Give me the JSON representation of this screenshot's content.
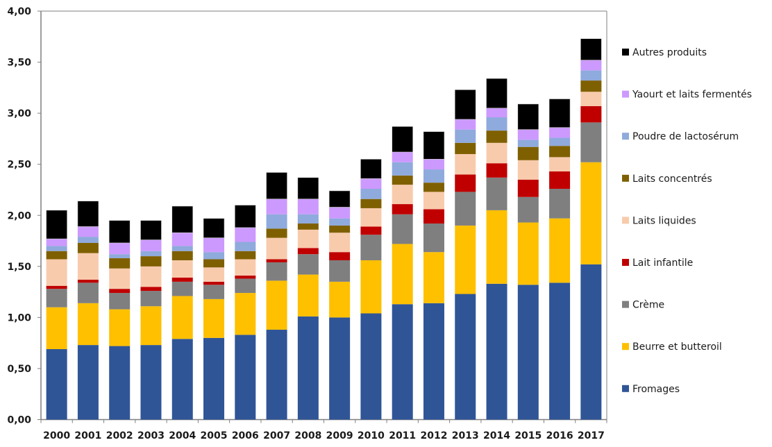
{
  "chart_data": {
    "type": "bar",
    "stacked": true,
    "title": "",
    "xlabel": "",
    "ylabel": "",
    "ylim": [
      0,
      4
    ],
    "yticks": [
      "0,00",
      "0,50",
      "1,00",
      "1,50",
      "2,00",
      "2,50",
      "3,00",
      "3,50",
      "4,00"
    ],
    "ytick_values": [
      0,
      0.5,
      1,
      1.5,
      2,
      2.5,
      3,
      3.5,
      4
    ],
    "grid": false,
    "legend_position": "right",
    "categories": [
      "2000",
      "2001",
      "2002",
      "2003",
      "2004",
      "2005",
      "2006",
      "2007",
      "2008",
      "2009",
      "2010",
      "2011",
      "2012",
      "2013",
      "2014",
      "2015",
      "2016",
      "2017"
    ],
    "series": [
      {
        "name": "Fromages",
        "color": "#2F5597",
        "values": [
          0.69,
          0.73,
          0.72,
          0.73,
          0.79,
          0.8,
          0.83,
          0.88,
          1.01,
          1.0,
          1.04,
          1.13,
          1.14,
          1.23,
          1.33,
          1.32,
          1.34,
          1.52
        ]
      },
      {
        "name": "Beurre et butteroil",
        "color": "#FFC000",
        "values": [
          0.41,
          0.41,
          0.36,
          0.38,
          0.42,
          0.38,
          0.41,
          0.48,
          0.41,
          0.35,
          0.52,
          0.59,
          0.5,
          0.67,
          0.72,
          0.61,
          0.63,
          1.0
        ]
      },
      {
        "name": "Crème",
        "color": "#7F7F7F",
        "values": [
          0.18,
          0.2,
          0.16,
          0.15,
          0.14,
          0.14,
          0.14,
          0.18,
          0.2,
          0.21,
          0.25,
          0.29,
          0.28,
          0.33,
          0.32,
          0.25,
          0.29,
          0.39
        ]
      },
      {
        "name": "Lait infantile",
        "color": "#C00000",
        "values": [
          0.03,
          0.03,
          0.04,
          0.04,
          0.04,
          0.03,
          0.03,
          0.03,
          0.06,
          0.08,
          0.08,
          0.1,
          0.14,
          0.17,
          0.14,
          0.17,
          0.17,
          0.16
        ]
      },
      {
        "name": "Laits liquides",
        "color": "#F8CBAD",
        "values": [
          0.26,
          0.26,
          0.2,
          0.2,
          0.17,
          0.14,
          0.16,
          0.21,
          0.18,
          0.19,
          0.18,
          0.19,
          0.17,
          0.2,
          0.2,
          0.19,
          0.14,
          0.14
        ]
      },
      {
        "name": "Laits concentrés",
        "color": "#7F6000",
        "values": [
          0.08,
          0.1,
          0.1,
          0.1,
          0.09,
          0.08,
          0.08,
          0.09,
          0.06,
          0.07,
          0.09,
          0.09,
          0.09,
          0.11,
          0.12,
          0.13,
          0.11,
          0.11
        ]
      },
      {
        "name": "Poudre de lactosérum",
        "color": "#8FAADC",
        "values": [
          0.05,
          0.06,
          0.04,
          0.05,
          0.05,
          0.07,
          0.09,
          0.14,
          0.09,
          0.07,
          0.1,
          0.13,
          0.13,
          0.13,
          0.13,
          0.07,
          0.08,
          0.1
        ]
      },
      {
        "name": "Yaourt et laits fermentés",
        "color": "#CC99FF",
        "values": [
          0.07,
          0.1,
          0.11,
          0.11,
          0.13,
          0.14,
          0.14,
          0.15,
          0.15,
          0.11,
          0.1,
          0.1,
          0.1,
          0.1,
          0.09,
          0.1,
          0.1,
          0.1
        ]
      },
      {
        "name": "Autres produits",
        "color": "#000000",
        "values": [
          0.28,
          0.25,
          0.22,
          0.19,
          0.26,
          0.19,
          0.22,
          0.26,
          0.21,
          0.16,
          0.19,
          0.25,
          0.27,
          0.29,
          0.29,
          0.25,
          0.28,
          0.21
        ]
      }
    ]
  }
}
